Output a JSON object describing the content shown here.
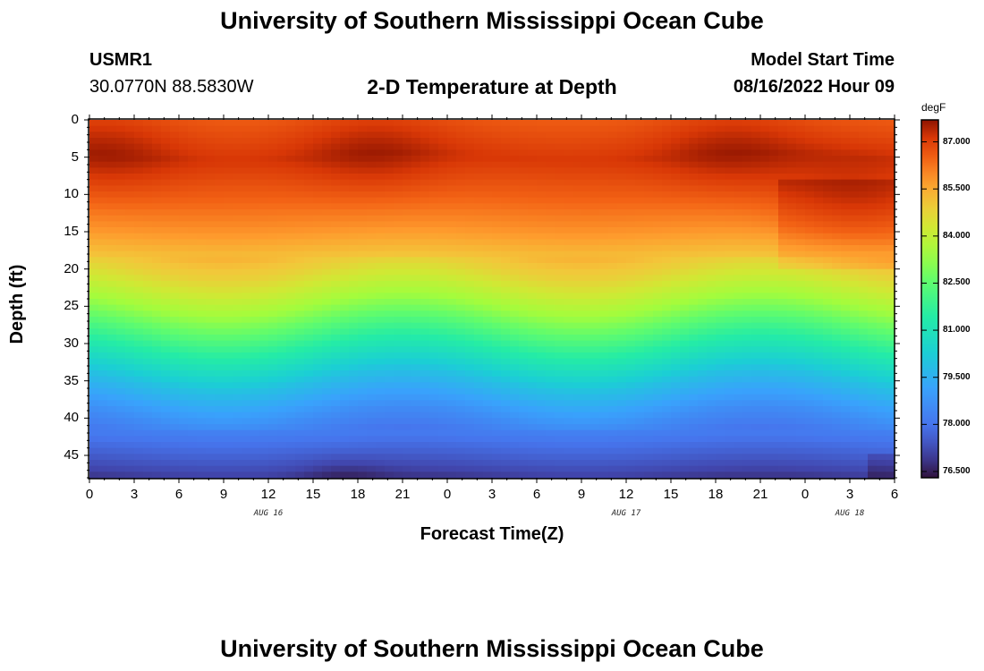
{
  "header": {
    "title": "University of Southern Mississippi Ocean Cube",
    "station": "USMR1",
    "coords": "30.0770N  88.5830W",
    "plot_title": "2-D Temperature at Depth",
    "model_label": "Model Start Time",
    "model_time": "08/16/2022 Hour 09"
  },
  "footer": {
    "title": "University of Southern Mississippi Ocean Cube"
  },
  "chart_data": {
    "type": "heatmap",
    "title": "2-D Temperature at Depth",
    "xlabel": "Forecast Time(Z)",
    "ylabel": "Depth (ft)",
    "x_tick_labels": [
      "0",
      "3",
      "6",
      "9",
      "12",
      "15",
      "18",
      "21",
      "0",
      "3",
      "6",
      "9",
      "12",
      "15",
      "18",
      "21",
      "0",
      "3",
      "6"
    ],
    "x_range_hours": [
      0,
      54
    ],
    "date_labels": [
      {
        "label": "AUG 16",
        "hour": 12
      },
      {
        "label": "AUG 17",
        "hour": 36
      },
      {
        "label": "AUG 18",
        "hour": 51
      }
    ],
    "y_tick_labels": [
      "0",
      "5",
      "10",
      "15",
      "20",
      "25",
      "30",
      "35",
      "40",
      "45"
    ],
    "y_range_ft": [
      0,
      48
    ],
    "colorbar": {
      "units": "degF",
      "min": 76.3,
      "max": 87.7,
      "ticks": [
        "87.000",
        "85.500",
        "84.000",
        "82.500",
        "81.000",
        "79.500",
        "78.000",
        "76.500"
      ],
      "tick_values": [
        87.0,
        85.5,
        84.0,
        82.5,
        81.0,
        79.5,
        78.0,
        76.5
      ]
    },
    "field_description": "Warm surface layer (~86-87.5 degF) above ~20 ft, thermocline 25-35 ft, cool bottom (~76.5-78 degF) near 45-48 ft",
    "depth_profile": {
      "depths_ft": [
        0,
        5,
        10,
        15,
        20,
        25,
        30,
        35,
        40,
        45,
        48
      ],
      "temps_degF": [
        86.6,
        87.1,
        86.5,
        85.8,
        84.8,
        83.4,
        81.6,
        79.9,
        78.6,
        77.6,
        76.9
      ]
    },
    "surface_warm_cores": [
      {
        "hour": 1,
        "depth_ft": 4
      },
      {
        "hour": 19,
        "depth_ft": 4
      },
      {
        "hour": 43,
        "depth_ft": 4
      },
      {
        "hour": 51,
        "depth_ft": 11
      }
    ]
  }
}
